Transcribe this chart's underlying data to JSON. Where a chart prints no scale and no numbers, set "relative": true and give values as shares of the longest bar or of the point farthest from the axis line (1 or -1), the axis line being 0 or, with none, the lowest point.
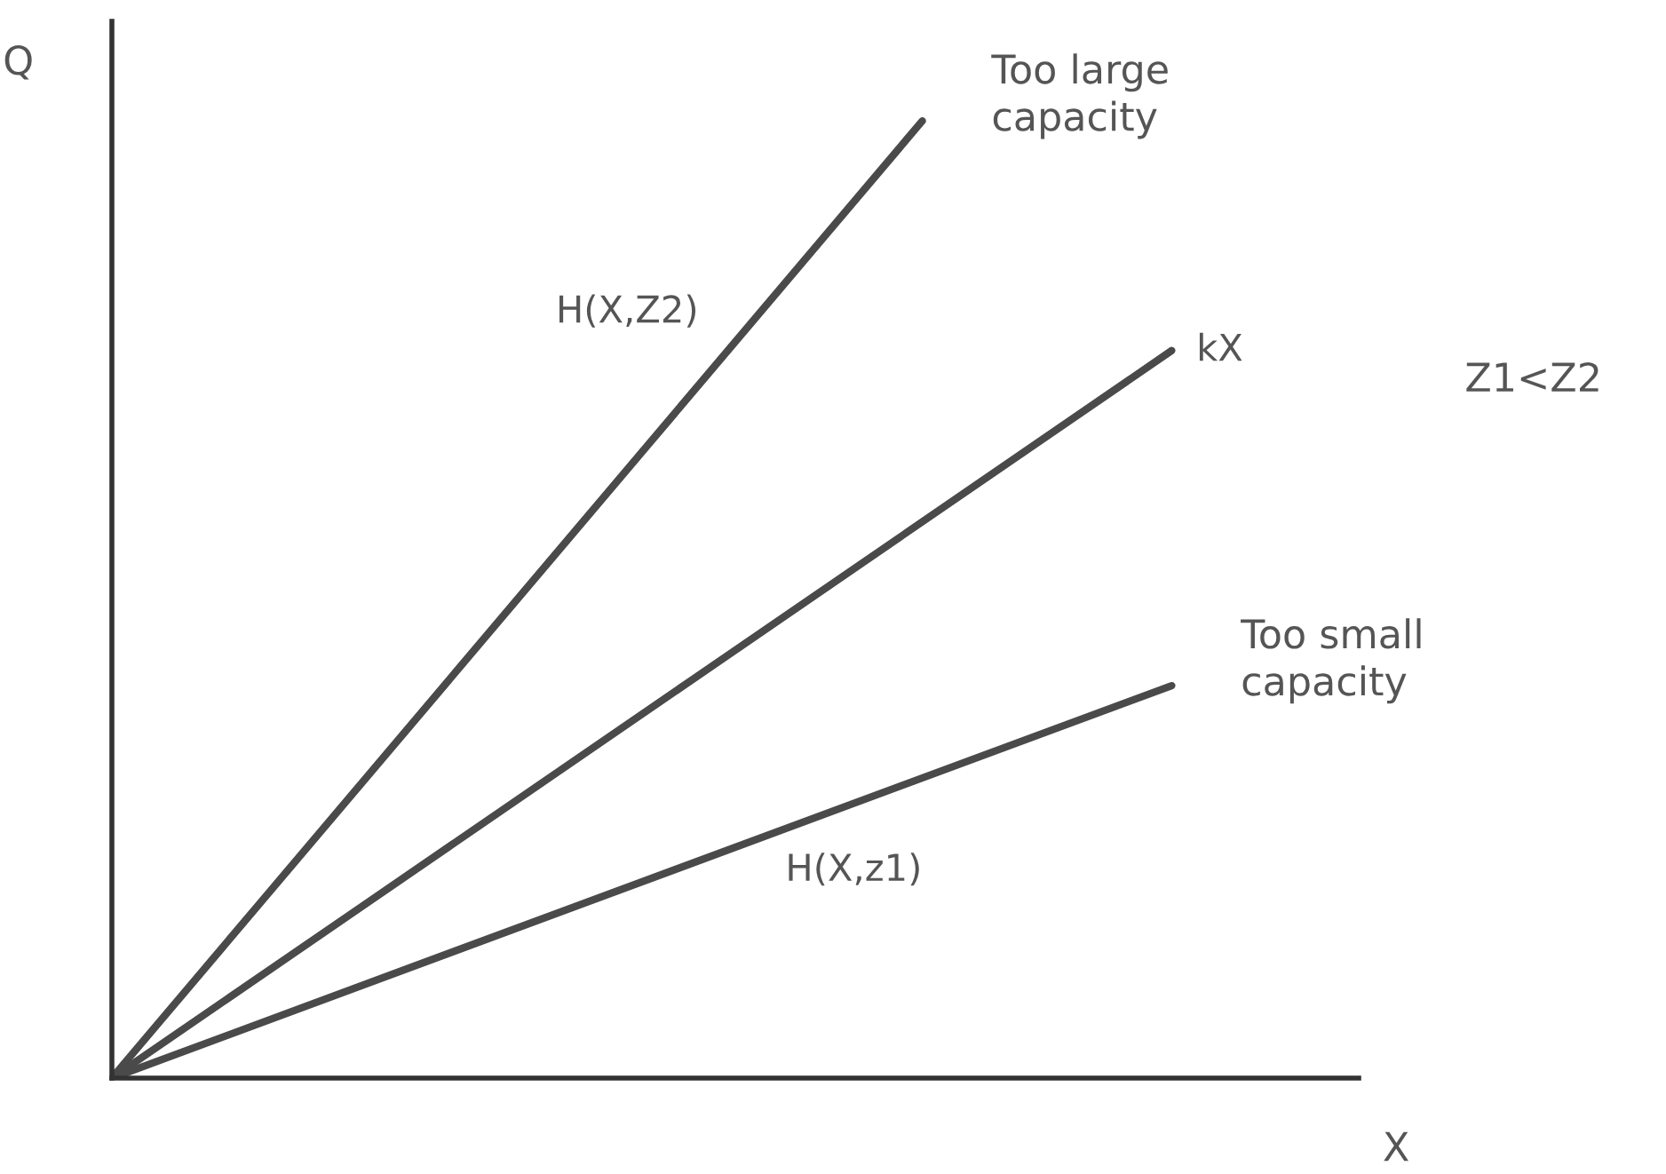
{
  "chart_data": {
    "type": "line",
    "relative": true,
    "xlabel": "X",
    "ylabel": "Q",
    "categories": [
      null,
      null,
      null,
      null,
      null,
      null,
      null,
      null,
      null,
      null,
      null,
      null,
      null,
      null,
      null,
      null,
      null,
      null,
      null,
      null,
      null
    ],
    "series": [
      {
        "name": "H(X,Z2)",
        "color": "#4a4a4a",
        "values": [
          0,
          null,
          null,
          null,
          null,
          null,
          null,
          null,
          null,
          null,
          null,
          null,
          null,
          1,
          null,
          null,
          null,
          null,
          null,
          null,
          null
        ]
      },
      {
        "name": "kX",
        "color": "#4a4a4a",
        "values": [
          0,
          null,
          null,
          null,
          null,
          null,
          null,
          null,
          null,
          null,
          null,
          null,
          null,
          null,
          null,
          null,
          null,
          0.76,
          null,
          null,
          null
        ]
      },
      {
        "name": "H(X,z1)",
        "color": "#4a4a4a",
        "values": [
          0,
          null,
          null,
          null,
          null,
          null,
          null,
          null,
          null,
          null,
          null,
          null,
          null,
          null,
          null,
          null,
          null,
          0.41,
          null,
          null,
          null
        ]
      }
    ],
    "annotations": [
      "Too large\ncapacity",
      "Too small\ncapacity",
      "Z1<Z2"
    ],
    "marker": "none",
    "line_style": "solid",
    "legend": false
  }
}
